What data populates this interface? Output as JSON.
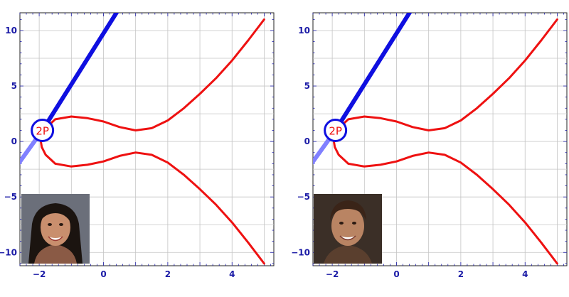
{
  "chart_data": [
    {
      "type": "line",
      "title": "",
      "xlabel": "",
      "ylabel": "",
      "xlim": [
        -2.6,
        5.3
      ],
      "ylim": [
        -11.2,
        11.6
      ],
      "x_ticks": [
        -2,
        0,
        2,
        4
      ],
      "y_ticks": [
        -10,
        -5,
        0,
        5,
        10
      ],
      "grid": true,
      "series": [
        {
          "role": "curve",
          "color": "#ee1111",
          "points": [
            [
              5.0,
              -11.0
            ],
            [
              4.5,
              -9.1
            ],
            [
              4.0,
              -7.3
            ],
            [
              3.5,
              -5.7
            ],
            [
              3.0,
              -4.3
            ],
            [
              2.5,
              -3.0
            ],
            [
              2.0,
              -1.9
            ],
            [
              1.5,
              -1.2
            ],
            [
              1.0,
              -1.0
            ],
            [
              0.5,
              -1.3
            ],
            [
              0.0,
              -1.8
            ],
            [
              -0.5,
              -2.1
            ],
            [
              -1.0,
              -2.25
            ],
            [
              -1.5,
              -2.0
            ],
            [
              -1.8,
              -1.2
            ],
            [
              -1.92,
              -0.5
            ],
            [
              -1.95,
              0.0
            ],
            [
              -1.92,
              0.5
            ],
            [
              -1.8,
              1.2
            ],
            [
              -1.5,
              2.0
            ],
            [
              -1.0,
              2.25
            ],
            [
              -0.5,
              2.1
            ],
            [
              0.0,
              1.8
            ],
            [
              0.5,
              1.3
            ],
            [
              1.0,
              1.0
            ],
            [
              1.5,
              1.2
            ],
            [
              2.0,
              1.9
            ],
            [
              2.5,
              3.0
            ],
            [
              3.0,
              4.3
            ],
            [
              3.5,
              5.7
            ],
            [
              4.0,
              7.3
            ],
            [
              4.5,
              9.1
            ],
            [
              5.0,
              11.0
            ]
          ]
        },
        {
          "role": "tangent-line",
          "color": "#0f0fe0",
          "points": [
            [
              -1.9,
              1.0
            ],
            [
              0.6,
              12.5
            ]
          ]
        },
        {
          "role": "tangent-line-faded",
          "color": "#8080ff",
          "points": [
            [
              -2.62,
              -1.9
            ],
            [
              -1.9,
              1.0
            ]
          ]
        }
      ],
      "point": {
        "label": "2P",
        "x": -1.9,
        "y": 1.0,
        "color": "#ee1111",
        "ring_color": "#0f0fe0"
      },
      "inset_photo": "portrait-woman"
    },
    {
      "type": "line",
      "title": "",
      "xlabel": "",
      "ylabel": "",
      "xlim": [
        -2.6,
        5.3
      ],
      "ylim": [
        -11.2,
        11.6
      ],
      "x_ticks": [
        -2,
        0,
        2,
        4
      ],
      "y_ticks": [
        -10,
        -5,
        0,
        5,
        10
      ],
      "grid": true,
      "series": [
        {
          "role": "curve",
          "color": "#ee1111",
          "points": [
            [
              5.0,
              -11.0
            ],
            [
              4.5,
              -9.1
            ],
            [
              4.0,
              -7.3
            ],
            [
              3.5,
              -5.7
            ],
            [
              3.0,
              -4.3
            ],
            [
              2.5,
              -3.0
            ],
            [
              2.0,
              -1.9
            ],
            [
              1.5,
              -1.2
            ],
            [
              1.0,
              -1.0
            ],
            [
              0.5,
              -1.3
            ],
            [
              0.0,
              -1.8
            ],
            [
              -0.5,
              -2.1
            ],
            [
              -1.0,
              -2.25
            ],
            [
              -1.5,
              -2.0
            ],
            [
              -1.8,
              -1.2
            ],
            [
              -1.92,
              -0.5
            ],
            [
              -1.95,
              0.0
            ],
            [
              -1.92,
              0.5
            ],
            [
              -1.8,
              1.2
            ],
            [
              -1.5,
              2.0
            ],
            [
              -1.0,
              2.25
            ],
            [
              -0.5,
              2.1
            ],
            [
              0.0,
              1.8
            ],
            [
              0.5,
              1.3
            ],
            [
              1.0,
              1.0
            ],
            [
              1.5,
              1.2
            ],
            [
              2.0,
              1.9
            ],
            [
              2.5,
              3.0
            ],
            [
              3.0,
              4.3
            ],
            [
              3.5,
              5.7
            ],
            [
              4.0,
              7.3
            ],
            [
              4.5,
              9.1
            ],
            [
              5.0,
              11.0
            ]
          ]
        },
        {
          "role": "tangent-line",
          "color": "#0f0fe0",
          "points": [
            [
              -1.9,
              1.0
            ],
            [
              0.6,
              12.5
            ]
          ]
        },
        {
          "role": "tangent-line-faded",
          "color": "#8080ff",
          "points": [
            [
              -2.62,
              -1.9
            ],
            [
              -1.9,
              1.0
            ]
          ]
        }
      ],
      "point": {
        "label": "2P",
        "x": -1.9,
        "y": 1.0,
        "color": "#ee1111",
        "ring_color": "#0f0fe0"
      },
      "inset_photo": "portrait-man"
    }
  ]
}
